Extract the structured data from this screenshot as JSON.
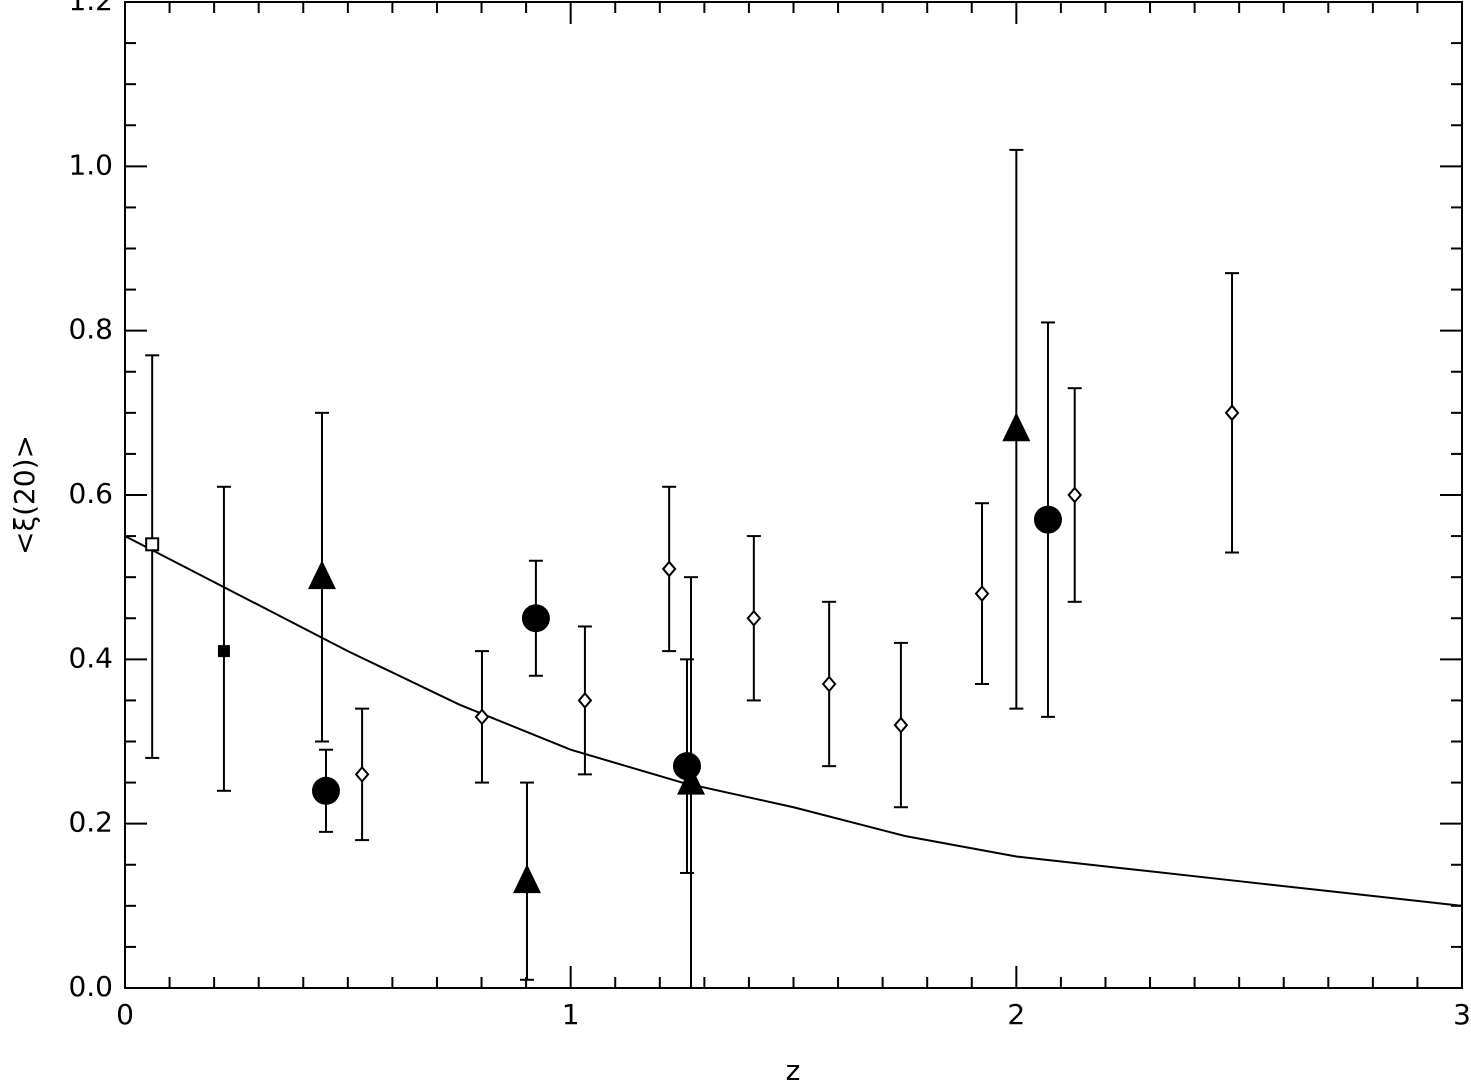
{
  "chart_data": {
    "type": "scatter",
    "x_label": "z",
    "y_label": "<ξ(20)>",
    "xlim": [
      0,
      3
    ],
    "ylim": [
      0,
      1.2
    ],
    "xticks": [
      0,
      1,
      2,
      3
    ],
    "yticks": [
      {
        "value": 0,
        "label": "0.0"
      },
      0.2,
      0.4,
      0.6,
      0.8,
      {
        "value": 1,
        "label": "1.0"
      },
      1.2
    ],
    "x_minor_divisions": 10,
    "y_minor_divisions": 4,
    "color": "#000000",
    "series": [
      {
        "marker": "square-open",
        "x": [
          0.061
        ],
        "values": [
          0.54
        ],
        "lower": [
          0.28
        ],
        "upper": [
          0.77
        ]
      },
      {
        "marker": "square-filled",
        "x": [
          0.222
        ],
        "values": [
          0.41
        ],
        "lower": [
          0.24
        ],
        "upper": [
          0.61
        ]
      },
      {
        "marker": "triangle-filled",
        "x": [
          0.442,
          0.902,
          1.27,
          2.0
        ],
        "values": [
          0.5,
          0.13,
          0.25,
          0.68
        ],
        "lower": [
          0.3,
          0.01,
          0,
          0.34
        ],
        "upper": [
          0.7,
          0.25,
          0.5,
          1.02
        ]
      },
      {
        "marker": "circle-filled",
        "x": [
          0.451,
          0.922,
          1.261,
          2.071
        ],
        "values": [
          0.24,
          0.45,
          0.27,
          0.57
        ],
        "lower": [
          0.19,
          0.38,
          0.14,
          0.33
        ],
        "upper": [
          0.29,
          0.52,
          0.4,
          0.81
        ]
      },
      {
        "marker": "diamond-open",
        "x": [
          0.532,
          0.801,
          1.032,
          1.221,
          1.411,
          1.58,
          1.741,
          1.923,
          2.131,
          2.484
        ],
        "values": [
          0.26,
          0.33,
          0.35,
          0.51,
          0.45,
          0.37,
          0.32,
          0.48,
          0.6,
          0.7
        ],
        "lower": [
          0.18,
          0.25,
          0.26,
          0.41,
          0.35,
          0.27,
          0.22,
          0.37,
          0.47,
          0.53
        ],
        "upper": [
          0.34,
          0.41,
          0.44,
          0.61,
          0.55,
          0.47,
          0.42,
          0.59,
          0.73,
          0.87
        ]
      }
    ],
    "curve": {
      "x": [
        0,
        0.25,
        0.5,
        0.75,
        1,
        1.25,
        1.5,
        1.75,
        2,
        2.25,
        2.5,
        2.75,
        3
      ],
      "values": [
        0.55,
        0.48,
        0.41,
        0.345,
        0.29,
        0.25,
        0.22,
        0.185,
        0.16,
        0.145,
        0.13,
        0.115,
        0.1
      ]
    }
  }
}
